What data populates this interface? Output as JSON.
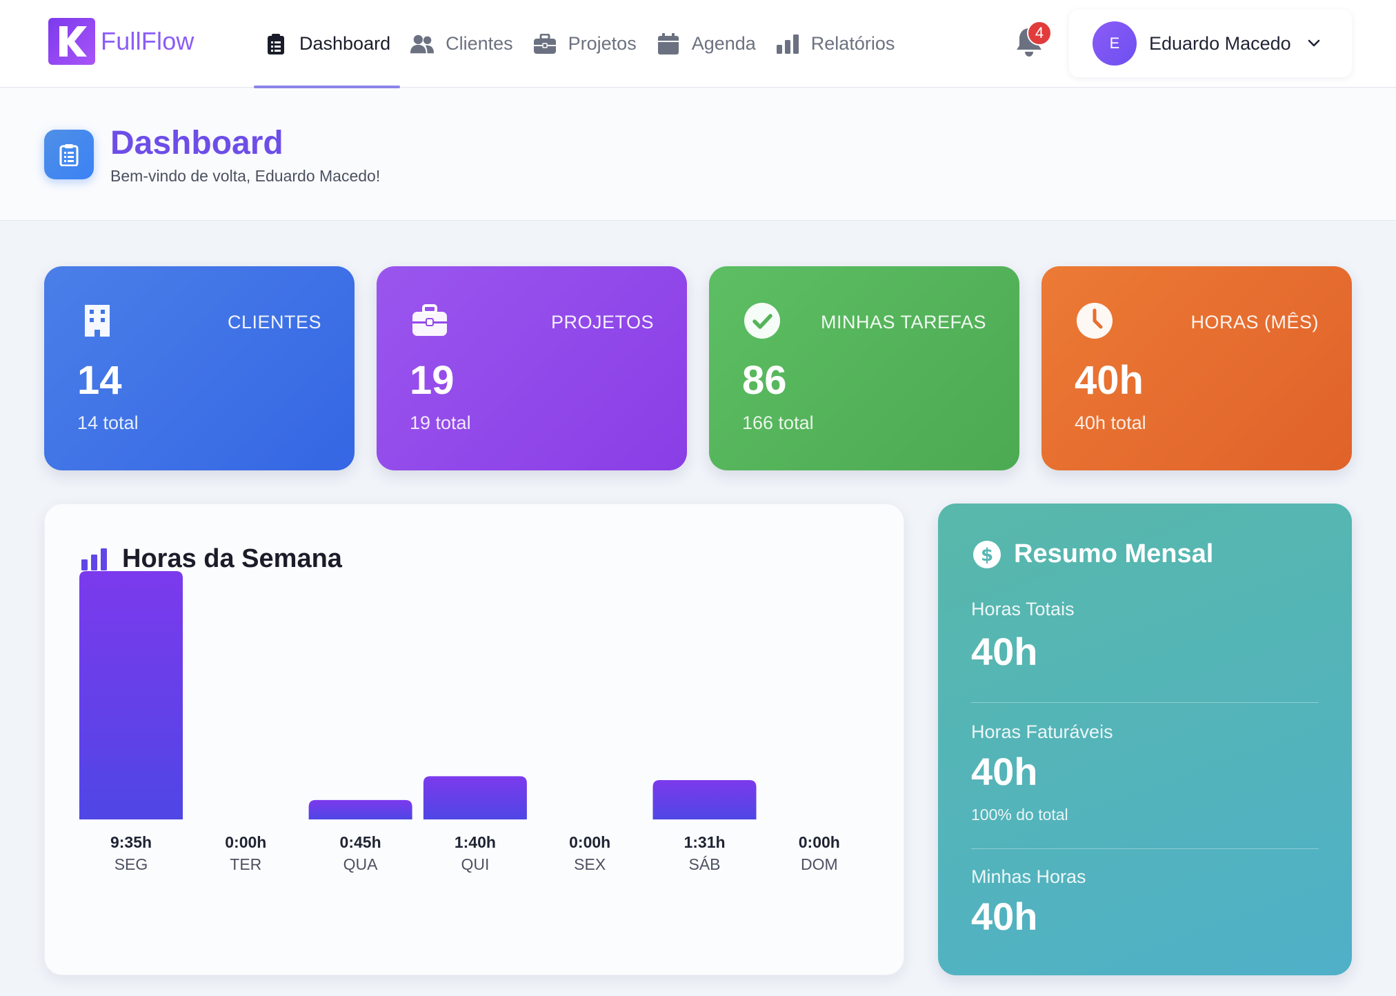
{
  "app": {
    "name": "FullFlow"
  },
  "nav": {
    "items": [
      {
        "label": "Dashboard",
        "icon": "clipboard-icon",
        "active": true
      },
      {
        "label": "Clientes",
        "icon": "users-icon",
        "active": false
      },
      {
        "label": "Projetos",
        "icon": "briefcase-icon",
        "active": false
      },
      {
        "label": "Agenda",
        "icon": "calendar-icon",
        "active": false
      },
      {
        "label": "Relatórios",
        "icon": "bar-chart-icon",
        "active": false
      }
    ],
    "notifications": {
      "count": "4",
      "icon": "bell-icon"
    },
    "user": {
      "initial": "E",
      "name": "Eduardo Macedo"
    }
  },
  "header": {
    "title": "Dashboard",
    "subtitle": "Bem-vindo de volta, Eduardo Macedo!"
  },
  "stats": [
    {
      "label": "CLIENTES",
      "value": "14",
      "sub": "14 total",
      "icon": "building-icon",
      "color": "#3f73e6"
    },
    {
      "label": "PROJETOS",
      "value": "19",
      "sub": "19 total",
      "icon": "briefcase-icon",
      "color": "#9249ea"
    },
    {
      "label": "MINHAS TAREFAS",
      "value": "86",
      "sub": "166 total",
      "icon": "check-circle-icon",
      "color": "#55b45a"
    },
    {
      "label": "HORAS (MÊS)",
      "value": "40h",
      "sub": "40h total",
      "icon": "clock-icon",
      "color": "#e66e2f"
    }
  ],
  "weekly": {
    "title": "Horas da Semana",
    "icon": "bar-chart-icon"
  },
  "chart_data": {
    "type": "bar",
    "title": "Horas da Semana",
    "categories": [
      "SEG",
      "TER",
      "QUA",
      "QUI",
      "SEX",
      "SÁB",
      "DOM"
    ],
    "value_labels": [
      "9:35h",
      "0:00h",
      "0:45h",
      "1:40h",
      "0:00h",
      "1:31h",
      "0:00h"
    ],
    "values": [
      575,
      0,
      45,
      100,
      0,
      91,
      0
    ],
    "value_unit": "minutes",
    "color_top": "#7c3aed",
    "color_bottom": "#4f46e5"
  },
  "summary": {
    "title": "Resumo Mensal",
    "icon": "dollar-icon",
    "total_label": "Horas Totais",
    "total_value": "40h",
    "billable_label": "Horas Faturáveis",
    "billable_value": "40h",
    "billable_note": "100% do total",
    "mine_label": "Minhas Horas",
    "mine_value": "40h"
  }
}
